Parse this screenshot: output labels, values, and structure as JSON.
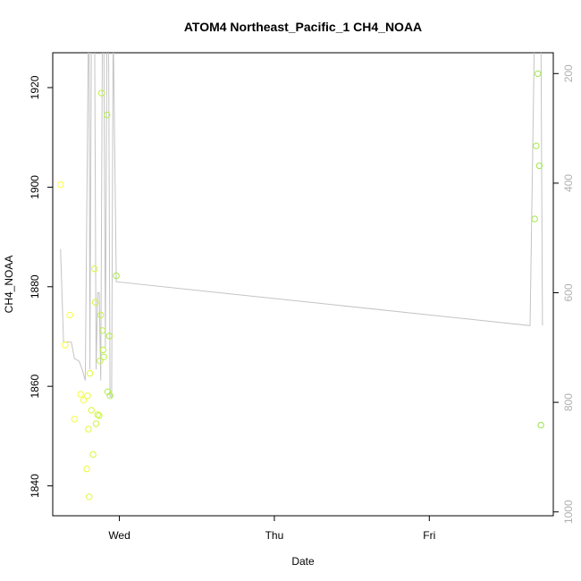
{
  "chart_data": {
    "type": "scatter",
    "title": "ATOM4 Northeast_Pacific_1 CH4_NOAA",
    "xlabel": "Date",
    "ylabel": "CH4_NOAA",
    "x_ticks": [
      "Wed",
      "Thu",
      "Fri"
    ],
    "y_ticks": [
      1840,
      1860,
      1880,
      1900,
      1920
    ],
    "y_right_ticks": [
      200,
      400,
      600,
      800,
      1000
    ],
    "ylim": [
      1834,
      1927
    ],
    "y_right_lim": [
      1007,
      162
    ],
    "xlim_days": [
      -0.43,
      2.8
    ],
    "grid": false,
    "legend": "none",
    "colors": {
      "points_from": "#ffff33",
      "points_to": "#99e64d",
      "line": "#c4c4c4",
      "axis": "#000000",
      "right_axis": "#b0b0b0"
    },
    "series": [
      {
        "type": "points",
        "x_days": [
          -0.38,
          -0.35,
          -0.32,
          -0.29,
          -0.25,
          -0.23,
          -0.21,
          -0.205,
          -0.2,
          -0.195,
          -0.19,
          -0.18,
          -0.17,
          -0.16,
          -0.155,
          -0.15,
          -0.14,
          -0.13,
          -0.125,
          -0.12,
          -0.115,
          -0.11,
          -0.105,
          -0.1,
          -0.08,
          -0.075,
          -0.065,
          -0.06,
          -0.02,
          2.68,
          2.69,
          2.7,
          2.71,
          2.72
        ],
        "y": [
          1900.5,
          1868.3,
          1874.3,
          1853.4,
          1858.4,
          1857.2,
          1843.4,
          1858.1,
          1851.4,
          1837.8,
          1862.6,
          1855.2,
          1846.3,
          1883.6,
          1876.9,
          1852.5,
          1854.3,
          1854.1,
          1865.1,
          1874.3,
          1918.9,
          1871.2,
          1867.3,
          1865.9,
          1914.5,
          1858.9,
          1870.1,
          1858.1,
          1882.2,
          1893.6,
          1908.3,
          1922.8,
          1904.3,
          1852.2
        ]
      },
      {
        "type": "line",
        "axis": "right",
        "x_days": [
          -0.38,
          -0.36,
          -0.31,
          -0.29,
          -0.26,
          -0.24,
          -0.22,
          -0.2,
          -0.195,
          -0.19,
          -0.18,
          -0.17,
          -0.16,
          -0.15,
          -0.14,
          -0.13,
          -0.12,
          -0.11,
          -0.1,
          -0.09,
          -0.08,
          -0.07,
          -0.06,
          -0.05,
          -0.04,
          -0.02,
          2.65,
          2.68,
          2.7,
          2.72,
          2.73
        ],
        "y": [
          520,
          690,
          690,
          720,
          725,
          740,
          760,
          120,
          120,
          740,
          100,
          100,
          100,
          740,
          600,
          600,
          760,
          150,
          150,
          700,
          100,
          100,
          790,
          790,
          100,
          580,
          660,
          100,
          100,
          100,
          660
        ]
      }
    ]
  }
}
